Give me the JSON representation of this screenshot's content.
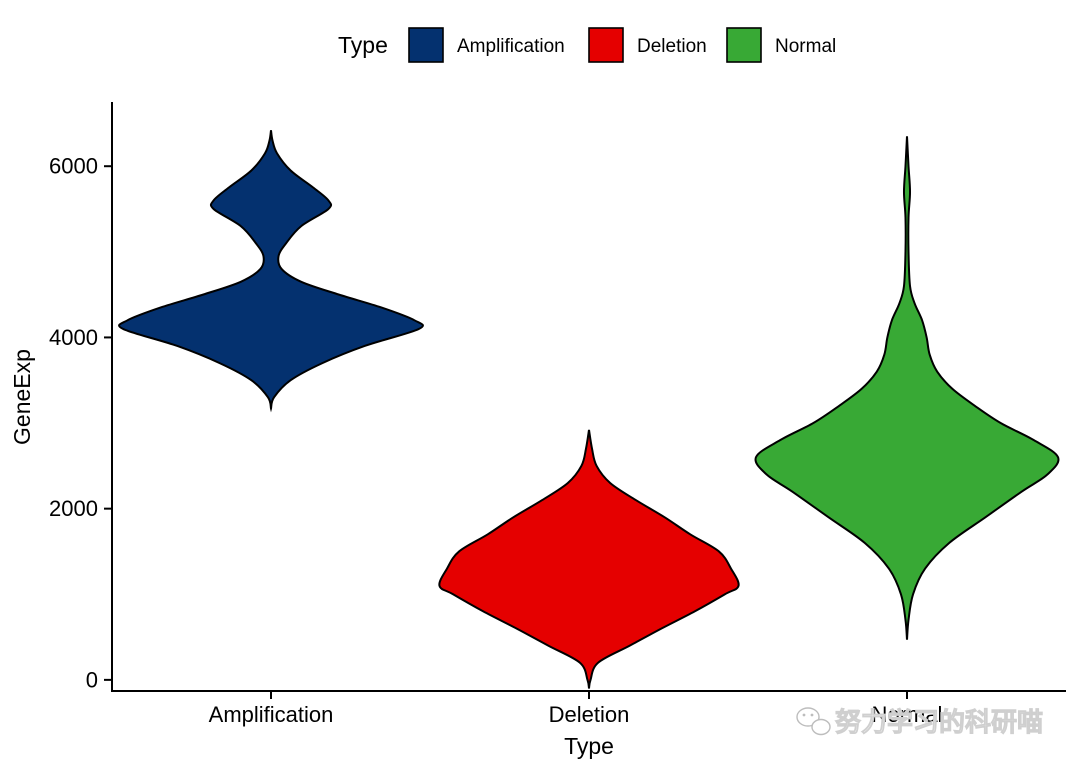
{
  "chart_data": {
    "type": "violin",
    "title": "",
    "xlabel": "Type",
    "ylabel": "GeneExp",
    "ylim": [
      -130,
      6750
    ],
    "yticks": [
      0,
      2000,
      4000,
      6000
    ],
    "categories": [
      "Amplification",
      "Deletion",
      "Normal"
    ],
    "legend": {
      "title": "Type",
      "position": "top",
      "entries": [
        "Amplification",
        "Deletion",
        "Normal"
      ]
    },
    "colors": {
      "Amplification": "#04316f",
      "Deletion": "#e50000",
      "Normal": "#38a935"
    },
    "series": [
      {
        "name": "Amplification",
        "density_profile": [
          [
            3170,
            0.0
          ],
          [
            3300,
            0.02
          ],
          [
            3500,
            0.13
          ],
          [
            3700,
            0.34
          ],
          [
            3900,
            0.62
          ],
          [
            4100,
            0.98
          ],
          [
            4200,
            0.95
          ],
          [
            4350,
            0.73
          ],
          [
            4500,
            0.45
          ],
          [
            4650,
            0.2
          ],
          [
            4800,
            0.07
          ],
          [
            4950,
            0.05
          ],
          [
            5100,
            0.1
          ],
          [
            5300,
            0.2
          ],
          [
            5500,
            0.38
          ],
          [
            5600,
            0.38
          ],
          [
            5750,
            0.28
          ],
          [
            5950,
            0.13
          ],
          [
            6150,
            0.04
          ],
          [
            6300,
            0.01
          ],
          [
            6420,
            0.0
          ]
        ]
      },
      {
        "name": "Deletion",
        "density_profile": [
          [
            -100,
            0.0
          ],
          [
            0,
            0.01
          ],
          [
            200,
            0.06
          ],
          [
            400,
            0.27
          ],
          [
            600,
            0.48
          ],
          [
            800,
            0.7
          ],
          [
            1000,
            0.9
          ],
          [
            1100,
            0.99
          ],
          [
            1300,
            0.94
          ],
          [
            1500,
            0.86
          ],
          [
            1700,
            0.67
          ],
          [
            1900,
            0.5
          ],
          [
            2100,
            0.31
          ],
          [
            2300,
            0.14
          ],
          [
            2500,
            0.05
          ],
          [
            2700,
            0.02
          ],
          [
            2920,
            0.0
          ]
        ]
      },
      {
        "name": "Normal",
        "density_profile": [
          [
            470,
            0.0
          ],
          [
            700,
            0.01
          ],
          [
            1000,
            0.04
          ],
          [
            1300,
            0.12
          ],
          [
            1600,
            0.28
          ],
          [
            1900,
            0.52
          ],
          [
            2200,
            0.76
          ],
          [
            2400,
            0.93
          ],
          [
            2600,
            1.0
          ],
          [
            2800,
            0.84
          ],
          [
            3000,
            0.62
          ],
          [
            3200,
            0.45
          ],
          [
            3400,
            0.3
          ],
          [
            3600,
            0.2
          ],
          [
            3800,
            0.15
          ],
          [
            4000,
            0.13
          ],
          [
            4200,
            0.1
          ],
          [
            4400,
            0.05
          ],
          [
            4600,
            0.02
          ],
          [
            5000,
            0.01
          ],
          [
            5400,
            0.01
          ],
          [
            5700,
            0.02
          ],
          [
            6000,
            0.01
          ],
          [
            6350,
            0.0
          ]
        ]
      }
    ]
  },
  "watermark": {
    "icon": "wechat-icon",
    "text": "努力学习的科研喵"
  }
}
